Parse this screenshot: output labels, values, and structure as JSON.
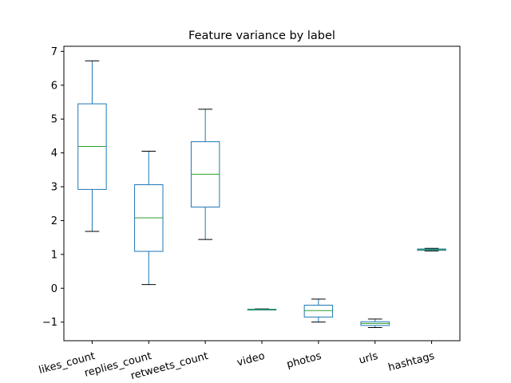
{
  "chart_data": {
    "type": "box",
    "title": "Feature variance by label",
    "xlabel": "",
    "ylabel": "",
    "ylim": [
      -1.55,
      7.15
    ],
    "yticks": [
      -1,
      0,
      1,
      2,
      3,
      4,
      5,
      6,
      7
    ],
    "grid": false,
    "categories": [
      "likes_count",
      "replies_count",
      "retweets_count",
      "video",
      "photos",
      "urls",
      "hashtags"
    ],
    "boxes": [
      {
        "category": "likes_count",
        "whisker_low": 1.68,
        "q1": 2.92,
        "median": 4.19,
        "q3": 5.45,
        "whisker_high": 6.72
      },
      {
        "category": "replies_count",
        "whisker_low": 0.11,
        "q1": 1.09,
        "median": 2.08,
        "q3": 3.06,
        "whisker_high": 4.05
      },
      {
        "category": "retweets_count",
        "whisker_low": 1.44,
        "q1": 2.4,
        "median": 3.37,
        "q3": 4.33,
        "whisker_high": 5.29
      },
      {
        "category": "video",
        "whisker_low": -0.64,
        "q1": -0.63,
        "median": -0.63,
        "q3": -0.62,
        "whisker_high": -0.61
      },
      {
        "category": "photos",
        "whisker_low": -1.0,
        "q1": -0.85,
        "median": -0.66,
        "q3": -0.5,
        "whisker_high": -0.32
      },
      {
        "category": "urls",
        "whisker_low": -1.16,
        "q1": -1.1,
        "median": -1.04,
        "q3": -0.99,
        "whisker_high": -0.91
      },
      {
        "category": "hashtags",
        "whisker_low": 1.1,
        "q1": 1.12,
        "median": 1.14,
        "q3": 1.16,
        "whisker_high": 1.18
      }
    ],
    "colors": {
      "box": "#1f77b4",
      "median": "#2ca02c",
      "whisker": "#1f77b4",
      "cap": "#000000",
      "axis": "#000000"
    }
  }
}
